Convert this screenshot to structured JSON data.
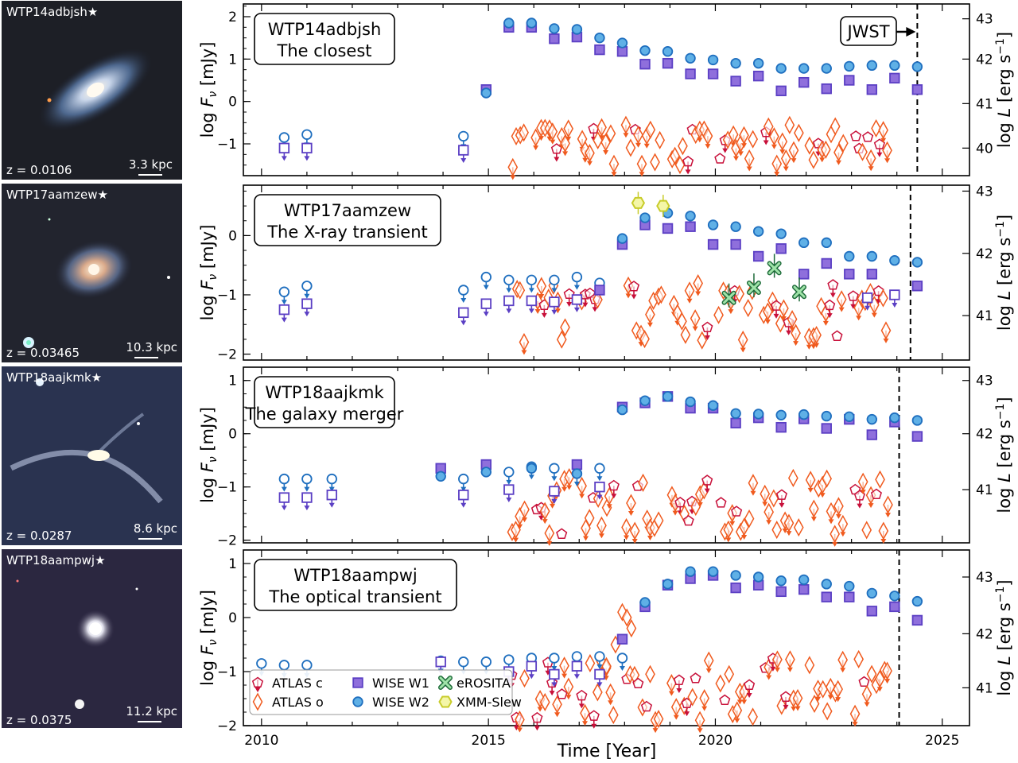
{
  "colors": {
    "atlas_c": "#c8103a",
    "atlas_o": "#f05a1e",
    "wise_w1": "#5b3fc4",
    "wise_w1_fill": "#8f6fdc",
    "wise_w2": "#1f6fbf",
    "wise_w2_fill": "#5fb0e6",
    "erosita": "#1e6b3a",
    "erosita_fill": "#9fe3a8",
    "xmm": "#c8cc2a",
    "xmm_fill": "#f4f6a8"
  },
  "thumbnails": [
    {
      "name": "WTP14adbjsh★",
      "z": "z = 0.0106",
      "scale": "3.3 kpc"
    },
    {
      "name": "WTP17aamzew★",
      "z": "z = 0.03465",
      "scale": "10.3 kpc"
    },
    {
      "name": "WTP18aajkmk★",
      "z": "z = 0.0287",
      "scale": "8.6 kpc"
    },
    {
      "name": "WTP18aampwj★",
      "z": "z = 0.0375",
      "scale": "11.2 kpc"
    }
  ],
  "chart_data": {
    "type": "scatter",
    "xlabel": "Time [Year]",
    "xlim": [
      2009.6,
      2025.6
    ],
    "xticks": [
      "2010",
      "2015",
      "2020",
      "2025"
    ],
    "ylabel": "log F_ν [mJy]",
    "ylabel_right": "log L [erg s⁻¹]",
    "legend": {
      "placement": "lower-left",
      "entries": [
        "ATLAS c",
        "ATLAS o",
        "WISE W1",
        "WISE W2",
        "eROSITA",
        "XMM-Slew"
      ]
    },
    "panels": [
      {
        "title_line1": "WTP14adbjsh",
        "title_line2": "The closest",
        "ylim": [
          -1.75,
          2.3
        ],
        "yticks": [
          "−1",
          "0",
          "1",
          "2"
        ],
        "right_ticks": [
          "40",
          "41",
          "42",
          "43"
        ],
        "right_tick_values": [
          -1.1,
          -0.05,
          1.0,
          1.95
        ],
        "jwst_x": 2024.45,
        "annotation": "JWST",
        "series": {
          "w2_up": [
            [
              2010.5,
              -0.85
            ],
            [
              2011.0,
              -0.78
            ],
            [
              2014.45,
              -0.82
            ]
          ],
          "w1_up": [
            [
              2010.5,
              -1.1
            ],
            [
              2011.0,
              -1.1
            ],
            [
              2014.45,
              -1.15
            ]
          ],
          "w2": [
            [
              2014.95,
              0.2
            ],
            [
              2015.45,
              1.85
            ],
            [
              2015.95,
              1.85
            ],
            [
              2016.45,
              1.72
            ],
            [
              2016.95,
              1.7
            ],
            [
              2017.45,
              1.5
            ],
            [
              2017.95,
              1.38
            ],
            [
              2018.45,
              1.2
            ],
            [
              2018.95,
              1.18
            ],
            [
              2019.45,
              1.02
            ],
            [
              2019.95,
              0.98
            ],
            [
              2020.45,
              0.9
            ],
            [
              2020.95,
              0.9
            ],
            [
              2021.45,
              0.78
            ],
            [
              2021.95,
              0.78
            ],
            [
              2022.45,
              0.78
            ],
            [
              2022.95,
              0.83
            ],
            [
              2023.45,
              0.85
            ],
            [
              2023.95,
              0.85
            ],
            [
              2024.45,
              0.82
            ]
          ],
          "w1": [
            [
              2014.95,
              0.28
            ],
            [
              2015.45,
              1.75
            ],
            [
              2015.95,
              1.75
            ],
            [
              2016.45,
              1.48
            ],
            [
              2016.95,
              1.52
            ],
            [
              2017.45,
              1.22
            ],
            [
              2017.95,
              1.18
            ],
            [
              2018.45,
              0.88
            ],
            [
              2018.95,
              0.9
            ],
            [
              2019.45,
              0.65
            ],
            [
              2019.95,
              0.65
            ],
            [
              2020.45,
              0.48
            ],
            [
              2020.95,
              0.6
            ],
            [
              2021.45,
              0.25
            ],
            [
              2021.95,
              0.45
            ],
            [
              2022.45,
              0.3
            ],
            [
              2022.95,
              0.5
            ],
            [
              2023.45,
              0.28
            ],
            [
              2023.95,
              0.55
            ],
            [
              2024.45,
              0.28
            ]
          ]
        },
        "optical_ranges": [
          [
            2015.5,
            2023.9
          ]
        ],
        "optical_band": [
          -1.55,
          -0.55
        ],
        "optical_level": -1.15
      },
      {
        "title_line1": "WTP17aamzew",
        "title_line2": "The X-ray transient",
        "ylim": [
          -2.1,
          0.85
        ],
        "yticks": [
          "−2",
          "−1",
          "0"
        ],
        "right_ticks": [
          "41",
          "42",
          "43"
        ],
        "right_tick_values": [
          -1.35,
          -0.3,
          0.75
        ],
        "jwst_x": 2024.3,
        "series": {
          "w2_up": [
            [
              2010.5,
              -0.95
            ],
            [
              2011.0,
              -0.85
            ],
            [
              2014.45,
              -0.92
            ],
            [
              2014.95,
              -0.7
            ],
            [
              2015.45,
              -0.75
            ],
            [
              2015.95,
              -0.75
            ],
            [
              2016.45,
              -0.75
            ],
            [
              2016.95,
              -0.7
            ],
            [
              2017.45,
              -0.8
            ]
          ],
          "w1_up": [
            [
              2010.5,
              -1.25
            ],
            [
              2011.0,
              -1.15
            ],
            [
              2014.45,
              -1.3
            ],
            [
              2014.95,
              -1.15
            ],
            [
              2015.45,
              -1.1
            ],
            [
              2015.95,
              -1.1
            ],
            [
              2016.45,
              -1.12
            ],
            [
              2016.95,
              -1.08
            ],
            [
              2023.35,
              -1.05
            ],
            [
              2023.95,
              -1.0
            ]
          ],
          "w2": [
            [
              2017.95,
              -0.05
            ],
            [
              2018.45,
              0.3
            ],
            [
              2018.95,
              0.38
            ],
            [
              2019.45,
              0.33
            ],
            [
              2019.95,
              0.18
            ],
            [
              2020.45,
              0.15
            ],
            [
              2020.95,
              0.07
            ],
            [
              2021.45,
              0.03
            ],
            [
              2021.95,
              -0.12
            ],
            [
              2022.45,
              -0.12
            ],
            [
              2022.95,
              -0.35
            ],
            [
              2023.45,
              -0.35
            ],
            [
              2023.95,
              -0.42
            ],
            [
              2024.45,
              -0.45
            ]
          ],
          "w1": [
            [
              2017.45,
              -0.92
            ],
            [
              2017.95,
              -0.15
            ],
            [
              2018.45,
              0.18
            ],
            [
              2018.95,
              0.12
            ],
            [
              2019.45,
              0.15
            ],
            [
              2019.95,
              -0.15
            ],
            [
              2020.45,
              -0.15
            ],
            [
              2020.95,
              -0.35
            ],
            [
              2021.45,
              -0.22
            ],
            [
              2021.95,
              -0.65
            ],
            [
              2022.45,
              -0.47
            ],
            [
              2022.95,
              -0.65
            ],
            [
              2023.45,
              -0.65
            ],
            [
              2024.45,
              -0.85
            ]
          ],
          "erosita": [
            [
              2020.3,
              -1.05
            ],
            [
              2020.85,
              -0.88
            ],
            [
              2021.3,
              -0.55
            ],
            [
              2021.85,
              -0.95
            ]
          ],
          "xmm": [
            [
              2018.3,
              0.55
            ],
            [
              2018.85,
              0.5
            ]
          ]
        },
        "optical_ranges": [
          [
            2015.6,
            2017.4
          ],
          [
            2017.9,
            2023.9
          ]
        ],
        "optical_band": [
          -1.8,
          -0.8
        ],
        "optical_level": -1.5
      },
      {
        "title_line1": "WTP18aajkmk",
        "title_line2": "The galaxy merger",
        "ylim": [
          -2.05,
          1.25
        ],
        "yticks": [
          "−2",
          "−1",
          "0",
          "1"
        ],
        "right_ticks": [
          "41",
          "42",
          "43"
        ],
        "right_tick_values": [
          -1.05,
          0.0,
          1.0
        ],
        "jwst_x": 2024.05,
        "series": {
          "w2_up": [
            [
              2010.5,
              -0.85
            ],
            [
              2011.0,
              -0.85
            ],
            [
              2011.55,
              -0.85
            ],
            [
              2014.45,
              -0.85
            ],
            [
              2015.45,
              -0.72
            ],
            [
              2015.95,
              -0.62
            ],
            [
              2016.45,
              -0.65
            ],
            [
              2016.95,
              -0.75
            ],
            [
              2017.45,
              -0.65
            ]
          ],
          "w1_up": [
            [
              2010.5,
              -1.2
            ],
            [
              2011.0,
              -1.2
            ],
            [
              2011.55,
              -1.15
            ],
            [
              2014.45,
              -1.15
            ],
            [
              2015.45,
              -1.05
            ],
            [
              2016.45,
              -1.08
            ],
            [
              2017.45,
              -1.0
            ]
          ],
          "w2": [
            [
              2013.95,
              -0.8
            ],
            [
              2014.95,
              -0.72
            ],
            [
              2015.95,
              -0.65
            ],
            [
              2016.95,
              -0.75
            ],
            [
              2017.95,
              0.45
            ],
            [
              2018.45,
              0.62
            ],
            [
              2018.95,
              0.7
            ],
            [
              2019.45,
              0.6
            ],
            [
              2019.95,
              0.53
            ],
            [
              2020.45,
              0.38
            ],
            [
              2020.95,
              0.37
            ],
            [
              2021.45,
              0.35
            ],
            [
              2021.95,
              0.36
            ],
            [
              2022.45,
              0.33
            ],
            [
              2022.95,
              0.32
            ],
            [
              2023.45,
              0.27
            ],
            [
              2023.95,
              0.3
            ],
            [
              2024.45,
              0.25
            ]
          ],
          "w1": [
            [
              2013.95,
              -0.65
            ],
            [
              2014.95,
              -0.58
            ],
            [
              2016.95,
              -0.58
            ],
            [
              2017.95,
              0.5
            ],
            [
              2018.45,
              0.58
            ],
            [
              2018.95,
              0.7
            ],
            [
              2019.45,
              0.48
            ],
            [
              2019.95,
              0.48
            ],
            [
              2020.45,
              0.2
            ],
            [
              2020.95,
              0.3
            ],
            [
              2021.45,
              0.12
            ],
            [
              2021.95,
              0.28
            ],
            [
              2022.45,
              0.1
            ],
            [
              2022.95,
              0.27
            ],
            [
              2023.45,
              -0.02
            ],
            [
              2023.95,
              0.22
            ],
            [
              2024.45,
              -0.05
            ]
          ]
        },
        "optical_ranges": [
          [
            2015.5,
            2023.9
          ]
        ],
        "optical_band": [
          -1.9,
          -0.8
        ],
        "optical_level": -1.5
      },
      {
        "title_line1": "WTP18aampwj",
        "title_line2": "The optical transient",
        "ylim": [
          -2.0,
          1.25
        ],
        "yticks": [
          "−2",
          "−1",
          "0",
          "1"
        ],
        "right_ticks": [
          "41",
          "42",
          "43"
        ],
        "right_tick_values": [
          -1.3,
          -0.3,
          0.75
        ],
        "jwst_x": 2024.05,
        "series": {
          "w2_up": [
            [
              2010.0,
              -0.85
            ],
            [
              2010.5,
              -0.88
            ],
            [
              2011.0,
              -0.88
            ],
            [
              2013.95,
              -0.8
            ],
            [
              2014.45,
              -0.82
            ],
            [
              2014.95,
              -0.82
            ],
            [
              2015.45,
              -0.78
            ],
            [
              2015.95,
              -0.75
            ],
            [
              2016.45,
              -0.75
            ],
            [
              2016.95,
              -0.72
            ],
            [
              2017.45,
              -0.72
            ],
            [
              2017.95,
              -0.75
            ]
          ],
          "w1_up": [
            [
              2013.95,
              -0.82
            ],
            [
              2015.45,
              -1.0
            ],
            [
              2015.95,
              -0.9
            ],
            [
              2016.45,
              -1.05
            ],
            [
              2016.95,
              -0.9
            ],
            [
              2017.45,
              -1.05
            ]
          ],
          "w2": [
            [
              2018.45,
              0.28
            ],
            [
              2018.95,
              0.62
            ],
            [
              2019.45,
              0.85
            ],
            [
              2019.95,
              0.85
            ],
            [
              2020.45,
              0.78
            ],
            [
              2020.95,
              0.75
            ],
            [
              2021.45,
              0.68
            ],
            [
              2021.95,
              0.7
            ],
            [
              2022.45,
              0.62
            ],
            [
              2022.95,
              0.58
            ],
            [
              2023.45,
              0.45
            ],
            [
              2023.95,
              0.4
            ],
            [
              2024.45,
              0.3
            ]
          ],
          "w1": [
            [
              2017.95,
              -0.4
            ],
            [
              2018.45,
              0.2
            ],
            [
              2018.95,
              0.6
            ],
            [
              2019.45,
              0.72
            ],
            [
              2019.95,
              0.78
            ],
            [
              2020.45,
              0.55
            ],
            [
              2020.95,
              0.6
            ],
            [
              2021.45,
              0.48
            ],
            [
              2021.95,
              0.52
            ],
            [
              2022.45,
              0.38
            ],
            [
              2022.95,
              0.38
            ],
            [
              2023.45,
              0.12
            ],
            [
              2023.95,
              0.2
            ],
            [
              2024.45,
              -0.05
            ]
          ]
        },
        "optical_ranges": [
          [
            2015.5,
            2023.9
          ]
        ],
        "optical_band": [
          -1.9,
          -0.75
        ],
        "optical_level": -1.5,
        "optical_rise": [
          [
            2017.6,
            -0.9
          ],
          [
            2017.8,
            -0.5
          ],
          [
            2017.95,
            0.1
          ],
          [
            2018.05,
            0.0
          ],
          [
            2018.15,
            -0.2
          ]
        ]
      }
    ]
  }
}
